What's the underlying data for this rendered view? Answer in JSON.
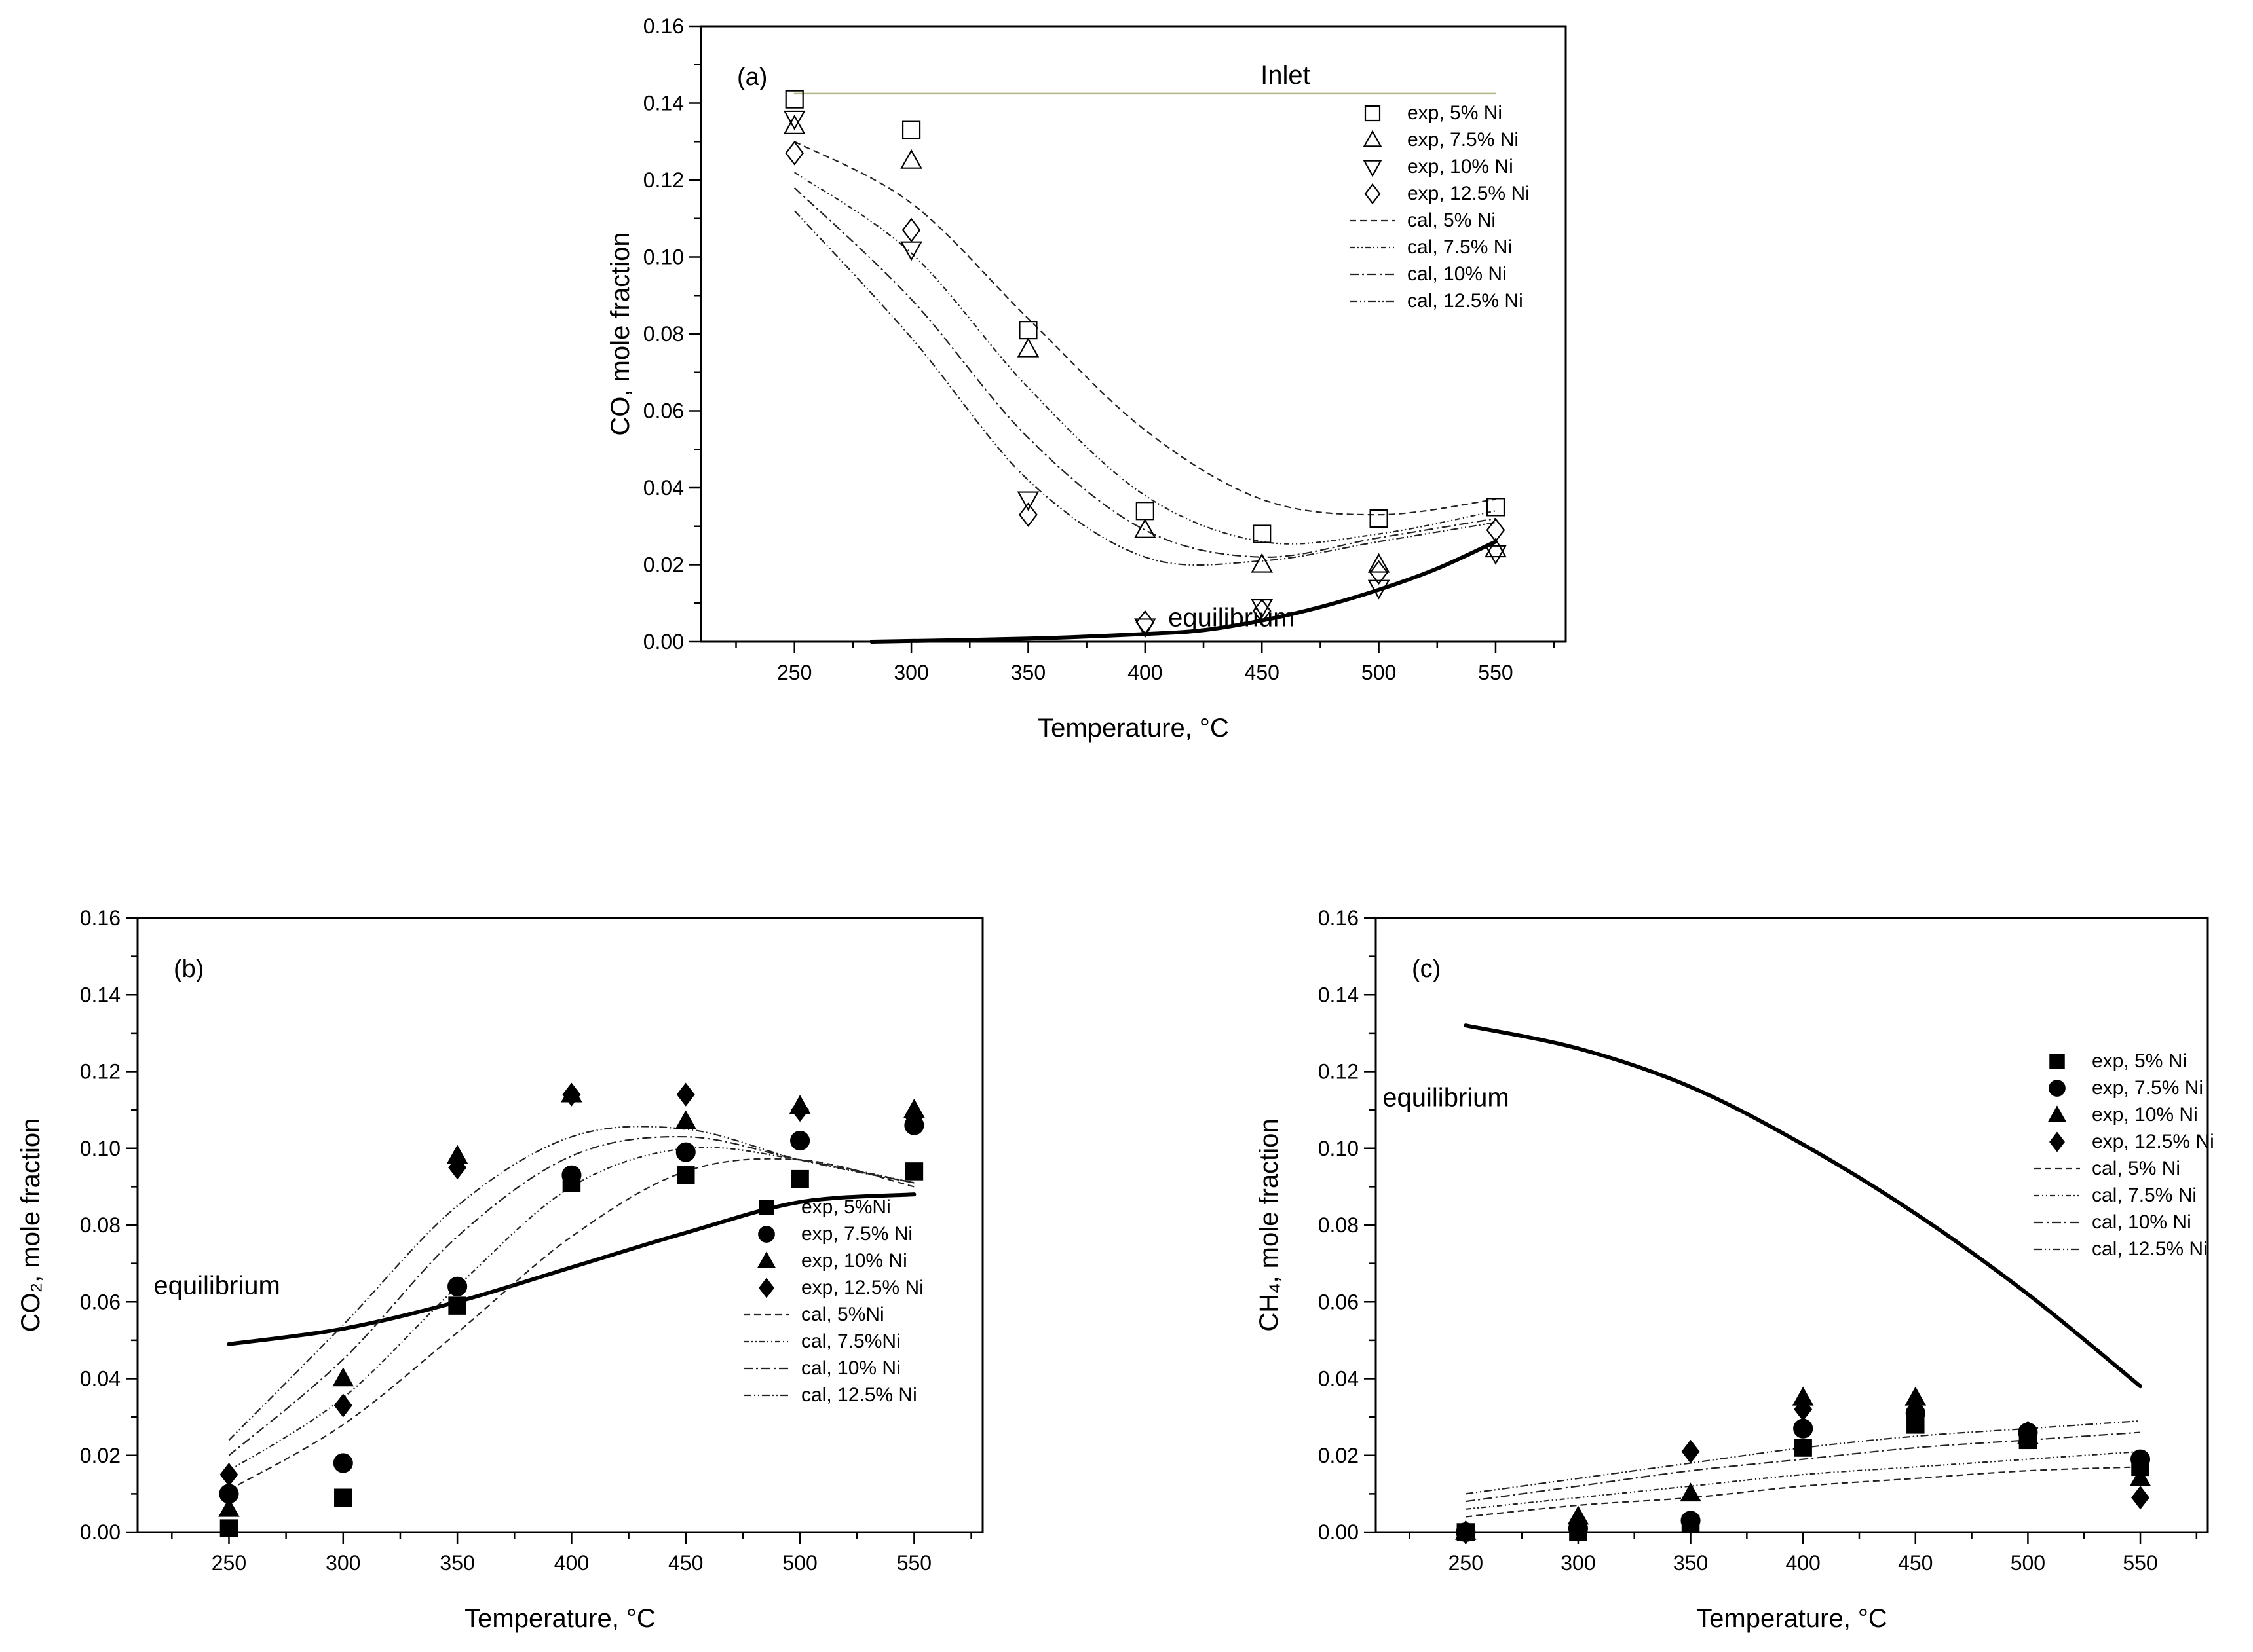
{
  "chart_data": [
    {
      "type": "scatter",
      "panel_label": "(a)",
      "xlabel": "Temperature, °C",
      "ylabel": "CO, mole fraction",
      "xlim": [
        210,
        580
      ],
      "ylim": [
        0,
        0.16
      ],
      "xticks": [
        "250",
        "300",
        "350",
        "400",
        "450",
        "500",
        "550"
      ],
      "yticks": [
        "0.00",
        "0.02",
        "0.04",
        "0.06",
        "0.08",
        "0.10",
        "0.12",
        "0.14",
        "0.16"
      ],
      "legend_position": "top-right",
      "series": [
        {
          "name": "exp, 5% Ni",
          "kind": "points",
          "marker": "square-open",
          "x": [
            250,
            300,
            350,
            400,
            450,
            500,
            550
          ],
          "y": [
            0.141,
            0.133,
            0.081,
            0.034,
            0.028,
            0.032,
            0.035
          ]
        },
        {
          "name": "exp, 7.5% Ni",
          "kind": "points",
          "marker": "triangle-up-open",
          "x": [
            250,
            300,
            350,
            400,
            450,
            500,
            550
          ],
          "y": [
            0.134,
            0.125,
            0.076,
            0.029,
            0.02,
            0.02,
            0.024
          ]
        },
        {
          "name": "exp, 10% Ni",
          "kind": "points",
          "marker": "triangle-down-open",
          "x": [
            250,
            300,
            350,
            400,
            450,
            500,
            550
          ],
          "y": [
            0.136,
            0.102,
            0.037,
            0.004,
            0.009,
            0.014,
            0.023
          ]
        },
        {
          "name": "exp, 12.5% Ni",
          "kind": "points",
          "marker": "diamond-open",
          "x": [
            250,
            300,
            350,
            400,
            450,
            500,
            550
          ],
          "y": [
            0.127,
            0.107,
            0.033,
            0.005,
            0.008,
            0.018,
            0.029
          ]
        },
        {
          "name": "cal, 5% Ni",
          "kind": "line",
          "dash": "10,6",
          "x": [
            250,
            300,
            350,
            400,
            450,
            500,
            550
          ],
          "y": [
            0.13,
            0.114,
            0.084,
            0.055,
            0.037,
            0.033,
            0.037
          ]
        },
        {
          "name": "cal, 7.5% Ni",
          "kind": "line",
          "dash": "8,4,2,4,2,4",
          "x": [
            250,
            300,
            350,
            400,
            450,
            500,
            550
          ],
          "y": [
            0.122,
            0.101,
            0.066,
            0.038,
            0.026,
            0.028,
            0.034
          ]
        },
        {
          "name": "cal, 10% Ni",
          "kind": "line",
          "dash": "14,5,3,5",
          "x": [
            250,
            300,
            350,
            400,
            450,
            500,
            550
          ],
          "y": [
            0.118,
            0.089,
            0.053,
            0.029,
            0.022,
            0.027,
            0.032
          ]
        },
        {
          "name": "cal, 12.5% Ni",
          "kind": "line",
          "dash": "12,4,2,4,2,4",
          "x": [
            250,
            300,
            350,
            400,
            450,
            500,
            550
          ],
          "y": [
            0.112,
            0.079,
            0.042,
            0.022,
            0.021,
            0.026,
            0.031
          ]
        }
      ],
      "extra_lines": [
        {
          "label": "Inlet",
          "x": [
            250,
            550
          ],
          "y": [
            0.1425,
            0.1425
          ],
          "color": "#b5b58a",
          "width": 2.5
        },
        {
          "label": "equilibrium",
          "x": [
            283,
            350,
            400,
            425,
            450,
            475,
            500,
            525,
            550
          ],
          "y": [
            0.0,
            0.0008,
            0.002,
            0.003,
            0.0055,
            0.009,
            0.0135,
            0.019,
            0.026
          ],
          "color": "#000000",
          "width": 6
        }
      ],
      "annotations": [
        {
          "text": "Inlet",
          "x": 460,
          "y": 0.145
        },
        {
          "text": "equilibrium",
          "x": 437,
          "y": 0.004
        }
      ]
    },
    {
      "type": "scatter",
      "panel_label": "(b)",
      "xlabel": "Temperature, °C",
      "ylabel": "CO₂, mole fraction",
      "xlim": [
        210,
        580
      ],
      "ylim": [
        0,
        0.16
      ],
      "xticks": [
        "250",
        "300",
        "350",
        "400",
        "450",
        "500",
        "550"
      ],
      "yticks": [
        "0.00",
        "0.02",
        "0.04",
        "0.06",
        "0.08",
        "0.10",
        "0.12",
        "0.14",
        "0.16"
      ],
      "legend_position": "lower-right",
      "series": [
        {
          "name": "exp, 5%Ni",
          "kind": "points",
          "marker": "square-filled",
          "x": [
            250,
            300,
            350,
            400,
            450,
            500,
            550
          ],
          "y": [
            0.001,
            0.009,
            0.059,
            0.091,
            0.093,
            0.092,
            0.094
          ]
        },
        {
          "name": "exp, 7.5% Ni",
          "kind": "points",
          "marker": "circle-filled",
          "x": [
            250,
            300,
            350,
            400,
            450,
            500,
            550
          ],
          "y": [
            0.01,
            0.018,
            0.064,
            0.093,
            0.099,
            0.102,
            0.106
          ]
        },
        {
          "name": "exp, 10% Ni",
          "kind": "points",
          "marker": "triangle-filled",
          "x": [
            250,
            300,
            350,
            400,
            450,
            500,
            550
          ],
          "y": [
            0.006,
            0.04,
            0.098,
            0.114,
            0.107,
            0.111,
            0.11
          ]
        },
        {
          "name": "exp, 12.5% Ni",
          "kind": "points",
          "marker": "diamond-filled",
          "x": [
            250,
            300,
            350,
            400,
            450,
            500,
            550
          ],
          "y": [
            0.015,
            0.033,
            0.095,
            0.114,
            0.114,
            0.11,
            0.108
          ]
        },
        {
          "name": "cal, 5%Ni",
          "kind": "line",
          "dash": "10,6",
          "x": [
            250,
            300,
            350,
            400,
            450,
            500,
            550
          ],
          "y": [
            0.011,
            0.028,
            0.052,
            0.077,
            0.094,
            0.097,
            0.09
          ]
        },
        {
          "name": "cal, 7.5%Ni",
          "kind": "line",
          "dash": "8,4,2,4,2,4",
          "x": [
            250,
            300,
            350,
            400,
            450,
            500,
            550
          ],
          "y": [
            0.016,
            0.035,
            0.064,
            0.09,
            0.1,
            0.097,
            0.091
          ]
        },
        {
          "name": "cal, 10% Ni",
          "kind": "line",
          "dash": "14,5,3,5",
          "x": [
            250,
            300,
            350,
            400,
            450,
            500,
            550
          ],
          "y": [
            0.02,
            0.045,
            0.077,
            0.098,
            0.103,
            0.097,
            0.091
          ]
        },
        {
          "name": "cal, 12.5% Ni",
          "kind": "line",
          "dash": "12,4,2,4,2,4",
          "x": [
            250,
            300,
            350,
            400,
            450,
            500,
            550
          ],
          "y": [
            0.024,
            0.054,
            0.085,
            0.103,
            0.105,
            0.097,
            0.091
          ]
        }
      ],
      "extra_lines": [
        {
          "label": "equilibrium",
          "x": [
            250,
            300,
            350,
            400,
            450,
            500,
            550
          ],
          "y": [
            0.049,
            0.053,
            0.06,
            0.069,
            0.078,
            0.086,
            0.088
          ],
          "color": "#000000",
          "width": 6
        }
      ],
      "annotations": [
        {
          "text": "equilibrium",
          "x": 217,
          "y": 0.062
        }
      ]
    },
    {
      "type": "scatter",
      "panel_label": "(c)",
      "xlabel": "Temperature, °C",
      "ylabel": "CH₄, mole fraction",
      "xlim": [
        210,
        580
      ],
      "ylim": [
        0,
        0.16
      ],
      "xticks": [
        "250",
        "300",
        "350",
        "400",
        "450",
        "500",
        "550"
      ],
      "yticks": [
        "0.00",
        "0.02",
        "0.04",
        "0.06",
        "0.08",
        "0.10",
        "0.12",
        "0.14",
        "0.16"
      ],
      "legend_position": "right",
      "series": [
        {
          "name": "exp, 5% Ni",
          "kind": "points",
          "marker": "square-filled",
          "x": [
            250,
            300,
            350,
            400,
            450,
            500,
            550
          ],
          "y": [
            0.0,
            0.0,
            0.002,
            0.022,
            0.028,
            0.024,
            0.017
          ]
        },
        {
          "name": "exp, 7.5% Ni",
          "kind": "points",
          "marker": "circle-filled",
          "x": [
            250,
            300,
            350,
            400,
            450,
            500,
            550
          ],
          "y": [
            0.0,
            0.001,
            0.003,
            0.027,
            0.031,
            0.026,
            0.019
          ]
        },
        {
          "name": "exp, 10% Ni",
          "kind": "points",
          "marker": "triangle-filled",
          "x": [
            250,
            300,
            350,
            400,
            450,
            500,
            550
          ],
          "y": [
            0.0,
            0.004,
            0.01,
            0.035,
            0.035,
            0.025,
            0.014
          ]
        },
        {
          "name": "exp, 12.5% Ni",
          "kind": "points",
          "marker": "diamond-filled",
          "x": [
            250,
            300,
            350,
            400,
            450,
            500,
            550
          ],
          "y": [
            0.0,
            0.001,
            0.021,
            0.032,
            0.032,
            0.026,
            0.009
          ]
        },
        {
          "name": "cal, 5% Ni",
          "kind": "line",
          "dash": "10,6",
          "x": [
            250,
            300,
            350,
            400,
            450,
            500,
            550
          ],
          "y": [
            0.004,
            0.007,
            0.009,
            0.012,
            0.014,
            0.016,
            0.017
          ]
        },
        {
          "name": "cal, 7.5% Ni",
          "kind": "line",
          "dash": "8,4,2,4,2,4",
          "x": [
            250,
            300,
            350,
            400,
            450,
            500,
            550
          ],
          "y": [
            0.006,
            0.009,
            0.012,
            0.015,
            0.017,
            0.019,
            0.021
          ]
        },
        {
          "name": "cal, 10% Ni",
          "kind": "line",
          "dash": "14,5,3,5",
          "x": [
            250,
            300,
            350,
            400,
            450,
            500,
            550
          ],
          "y": [
            0.008,
            0.012,
            0.016,
            0.019,
            0.022,
            0.024,
            0.026
          ]
        },
        {
          "name": "cal, 12.5% Ni",
          "kind": "line",
          "dash": "12,4,2,4,2,4",
          "x": [
            250,
            300,
            350,
            400,
            450,
            500,
            550
          ],
          "y": [
            0.01,
            0.014,
            0.018,
            0.022,
            0.025,
            0.027,
            0.029
          ]
        }
      ],
      "extra_lines": [
        {
          "label": "equilibrium",
          "x": [
            250,
            300,
            350,
            400,
            450,
            500,
            550
          ],
          "y": [
            0.132,
            0.126,
            0.116,
            0.101,
            0.083,
            0.062,
            0.038
          ],
          "color": "#000000",
          "width": 6
        }
      ],
      "annotations": [
        {
          "text": "equilibrium",
          "x": 213,
          "y": 0.111
        }
      ]
    }
  ]
}
